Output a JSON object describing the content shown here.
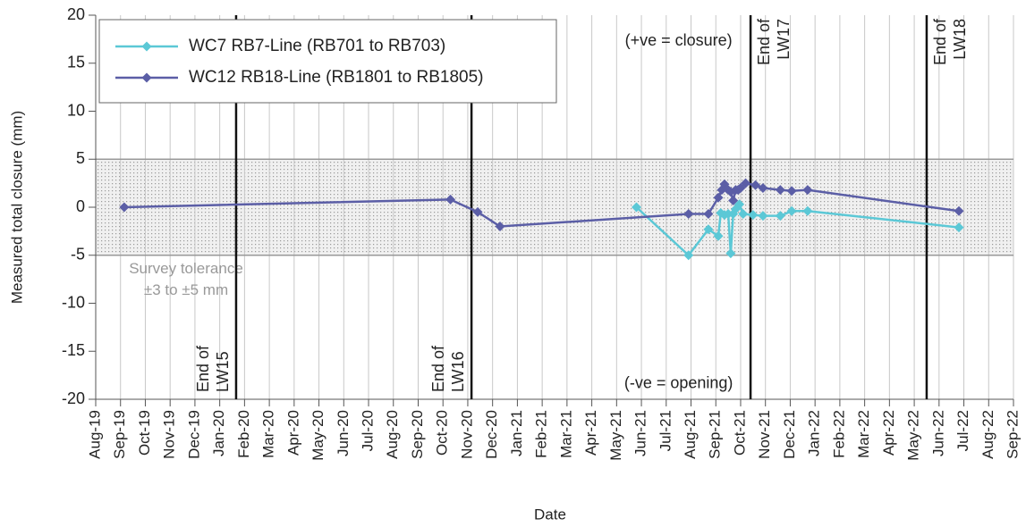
{
  "chart_data": {
    "type": "line",
    "xlabel": "Date",
    "ylabel": "Measured total closure (mm)",
    "xlim": [
      0,
      37
    ],
    "xticks": [
      {
        "value": 0,
        "label": "Aug-19"
      },
      {
        "value": 1,
        "label": "Sep-19"
      },
      {
        "value": 2,
        "label": "Oct-19"
      },
      {
        "value": 3,
        "label": "Nov-19"
      },
      {
        "value": 4,
        "label": "Dec-19"
      },
      {
        "value": 5,
        "label": "Jan-20"
      },
      {
        "value": 6,
        "label": "Feb-20"
      },
      {
        "value": 7,
        "label": "Mar-20"
      },
      {
        "value": 8,
        "label": "Apr-20"
      },
      {
        "value": 9,
        "label": "May-20"
      },
      {
        "value": 10,
        "label": "Jun-20"
      },
      {
        "value": 11,
        "label": "Jul-20"
      },
      {
        "value": 12,
        "label": "Aug-20"
      },
      {
        "value": 13,
        "label": "Sep-20"
      },
      {
        "value": 14,
        "label": "Oct-20"
      },
      {
        "value": 15,
        "label": "Nov-20"
      },
      {
        "value": 16,
        "label": "Dec-20"
      },
      {
        "value": 17,
        "label": "Jan-21"
      },
      {
        "value": 18,
        "label": "Feb-21"
      },
      {
        "value": 19,
        "label": "Mar-21"
      },
      {
        "value": 20,
        "label": "Apr-21"
      },
      {
        "value": 21,
        "label": "May-21"
      },
      {
        "value": 22,
        "label": "Jun-21"
      },
      {
        "value": 23,
        "label": "Jul-21"
      },
      {
        "value": 24,
        "label": "Aug-21"
      },
      {
        "value": 25,
        "label": "Sep-21"
      },
      {
        "value": 26,
        "label": "Oct-21"
      },
      {
        "value": 27,
        "label": "Nov-21"
      },
      {
        "value": 28,
        "label": "Dec-21"
      },
      {
        "value": 29,
        "label": "Jan-22"
      },
      {
        "value": 30,
        "label": "Feb-22"
      },
      {
        "value": 31,
        "label": "Mar-22"
      },
      {
        "value": 32,
        "label": "Apr-22"
      },
      {
        "value": 33,
        "label": "May-22"
      },
      {
        "value": 34,
        "label": "Jun-22"
      },
      {
        "value": 35,
        "label": "Jul-22"
      },
      {
        "value": 36,
        "label": "Aug-22"
      },
      {
        "value": 37,
        "label": "Sep-22"
      }
    ],
    "ylim": [
      -20,
      20
    ],
    "yticks": [
      -20,
      -15,
      -10,
      -5,
      0,
      5,
      10,
      15,
      20
    ],
    "grid": "x",
    "legend": "upper left",
    "tolerance_band": [
      -5,
      5
    ],
    "band_label": [
      "Survey tolerance",
      "±3 to ±5 mm"
    ],
    "annotations": [
      {
        "text": "(+ve = closure)",
        "x": 23.5,
        "y": 17.3
      },
      {
        "text": "(-ve = opening)",
        "x": 23.5,
        "y": -18.4
      }
    ],
    "vlines": [
      {
        "x": 5.66,
        "label": [
          "End of",
          "LW15"
        ],
        "position": "bottom"
      },
      {
        "x": 15.15,
        "label": [
          "End of",
          "LW16"
        ],
        "position": "bottom"
      },
      {
        "x": 26.4,
        "label": [
          "End of",
          "LW17"
        ],
        "position": "top"
      },
      {
        "x": 33.5,
        "label": [
          "End of",
          "LW18"
        ],
        "position": "top"
      }
    ],
    "series": [
      {
        "name": "WC7 RB7-Line (RB701 to RB703)",
        "color": "#5bc8d6",
        "x": [
          21.8,
          23.9,
          24.7,
          25.1,
          25.2,
          25.35,
          25.5,
          25.6,
          25.7,
          25.8,
          25.95,
          26.1,
          26.5,
          26.9,
          27.6,
          28.06,
          28.7,
          34.8
        ],
        "values": [
          0,
          -5.0,
          -2.3,
          -3.0,
          -0.6,
          -0.8,
          -0.7,
          -4.8,
          -0.7,
          -0.2,
          0.3,
          -0.7,
          -0.8,
          -0.9,
          -0.9,
          -0.4,
          -0.4,
          -2.1
        ]
      },
      {
        "name": "WC12 RB18-Line (RB1801 to RB1805)",
        "color": "#5b5ea6",
        "x": [
          1.15,
          14.3,
          15.4,
          16.3,
          23.9,
          24.7,
          25.1,
          25.24,
          25.35,
          25.46,
          25.6,
          25.7,
          25.8,
          25.9,
          26.0,
          26.2,
          26.6,
          26.9,
          27.6,
          28.06,
          28.7,
          34.8
        ],
        "values": [
          0,
          0.8,
          -0.5,
          -2.0,
          -0.7,
          -0.7,
          1.0,
          1.8,
          2.4,
          1.9,
          1.6,
          0.7,
          1.8,
          1.8,
          2.0,
          2.5,
          2.3,
          2.0,
          1.8,
          1.7,
          1.8,
          -0.4
        ]
      }
    ]
  }
}
